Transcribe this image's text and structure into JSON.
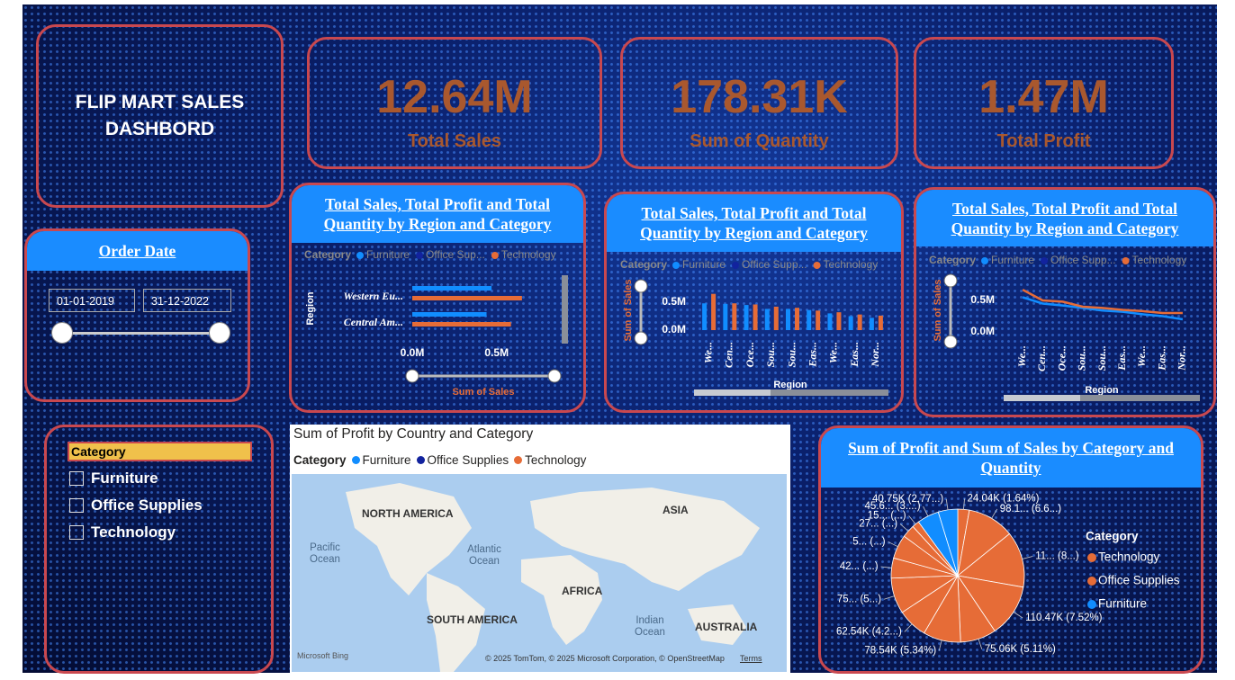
{
  "header": {
    "title": "FLIP MART SALES DASHBORD"
  },
  "kpis": [
    {
      "value": "12.64M",
      "label": "Total Sales"
    },
    {
      "value": "178.31K",
      "label": "Sum of Quantity"
    },
    {
      "value": "1.47M",
      "label": "Total Profit"
    }
  ],
  "date_filter": {
    "title": "Order Date",
    "start": "01-01-2019",
    "end": "31-12-2022"
  },
  "category_slicer": {
    "title": "Category",
    "items": [
      "Furniture",
      "Office Supplies",
      "Technology"
    ]
  },
  "map": {
    "title": "Sum of Profit by Country and Category",
    "legend_title": "Category",
    "legend": [
      "Furniture",
      "Office Supplies",
      "Technology"
    ],
    "labels": [
      "NORTH AMERICA",
      "ASIA",
      "SOUTH AMERICA",
      "AFRICA",
      "AUSTRALIA"
    ],
    "oceans": [
      "Pacific Ocean",
      "Atlantic Ocean",
      "Indian Ocean"
    ],
    "attribution": "© 2025 TomTom, © 2025 Microsoft Corporation, © OpenStreetMap",
    "terms": "Terms",
    "brand": "Microsoft Bing"
  },
  "chart_data": [
    {
      "type": "hbar",
      "title": "Total Sales, Total Profit and Total Quantity by Region and Category",
      "legend_title": "Category",
      "categories": [
        "Western Eu...",
        "Central Am..."
      ],
      "series": [
        {
          "name": "Furniture",
          "color": "#118dff",
          "values": [
            470000,
            440000
          ]
        },
        {
          "name": "Office Sup...",
          "color": "#12239e",
          "values": [
            null,
            null
          ]
        },
        {
          "name": "Technology",
          "color": "#e66c37",
          "values": [
            650000,
            585000
          ]
        }
      ],
      "xlim": [
        0,
        800000
      ],
      "xticks": [
        {
          "value": 0,
          "label": "0.0M"
        },
        {
          "value": 500000,
          "label": "0.5M"
        }
      ],
      "xlabel": "Sum of Sales",
      "ylabel": "Region"
    },
    {
      "type": "bar",
      "title": "Total Sales, Total Profit and Total Quantity by Region and Category",
      "legend_title": "Category",
      "categories": [
        "We...",
        "Cen...",
        "Oce...",
        "Sou...",
        "Sou...",
        "Eas...",
        "We...",
        "Eas...",
        "Nor..."
      ],
      "series": [
        {
          "name": "Furniture",
          "color": "#118dff",
          "values": [
            480000,
            470000,
            450000,
            380000,
            380000,
            360000,
            300000,
            250000,
            220000
          ]
        },
        {
          "name": "Office Supp...",
          "color": "#12239e",
          "values": [
            null,
            null,
            null,
            null,
            null,
            null,
            null,
            null,
            null
          ]
        },
        {
          "name": "Technology",
          "color": "#e66c37",
          "values": [
            650000,
            480000,
            460000,
            420000,
            400000,
            350000,
            320000,
            280000,
            260000
          ]
        }
      ],
      "ylim": [
        0,
        700000
      ],
      "yticks": [
        {
          "value": 0,
          "label": "0.0M"
        },
        {
          "value": 500000,
          "label": "0.5M"
        }
      ],
      "xlabel": "Region",
      "ylabel": "Sum of Sales"
    },
    {
      "type": "line",
      "title": "Total Sales, Total Profit and Total Quantity by Region and Category",
      "legend_title": "Category",
      "categories": [
        "We...",
        "Cen...",
        "Oce...",
        "Sou...",
        "Sou...",
        "Eas...",
        "We...",
        "Eas...",
        "Nor..."
      ],
      "series": [
        {
          "name": "Furniture",
          "color": "#118dff",
          "values": [
            550000,
            450000,
            420000,
            380000,
            340000,
            320000,
            280000,
            250000,
            200000
          ]
        },
        {
          "name": "Office Supp...",
          "color": "#12239e",
          "values": [
            null,
            null,
            null,
            null,
            null,
            null,
            null,
            null,
            null
          ]
        },
        {
          "name": "Technology",
          "color": "#e66c37",
          "values": [
            670000,
            500000,
            480000,
            400000,
            380000,
            350000,
            330000,
            300000,
            300000
          ]
        }
      ],
      "ylim": [
        0,
        700000
      ],
      "yticks": [
        {
          "value": 0,
          "label": "0.0M"
        },
        {
          "value": 500000,
          "label": "0.5M"
        }
      ],
      "xlabel": "Region",
      "ylabel": "Sum of Sales"
    },
    {
      "type": "pie",
      "title": "Sum of Profit and Sum of Sales by Category and Quantity",
      "legend_title": "Category",
      "legend": [
        {
          "name": "Technology",
          "color": "#e66c37"
        },
        {
          "name": "Office Supplies",
          "color": "#e66c37"
        },
        {
          "name": "Furniture",
          "color": "#118dff"
        }
      ],
      "values": [
        24040,
        98100,
        117000,
        110470,
        75060,
        78540,
        62540,
        75000,
        42000,
        50000,
        27000,
        15000,
        45600,
        40750
      ],
      "value_labels": [
        "24.04K (1.64%)",
        "98.1... (6.6...)",
        "11... (8...)",
        "110.47K (7.52%)",
        "75.06K (5.11%)",
        "78.54K (5.34%)",
        "62.54K (4.2...)",
        "75... (5...)",
        "42... (...)",
        "5... (...)",
        "27... (...)",
        "15... (...)",
        "45.6... (3....)",
        "40.75K (2.77...)"
      ],
      "colors": [
        "#e66c37",
        "#e66c37",
        "#e66c37",
        "#e66c37",
        "#e66c37",
        "#e66c37",
        "#e66c37",
        "#e66c37",
        "#e66c37",
        "#e66c37",
        "#e66c37",
        "#e66c37",
        "#118dff",
        "#118dff"
      ]
    }
  ]
}
